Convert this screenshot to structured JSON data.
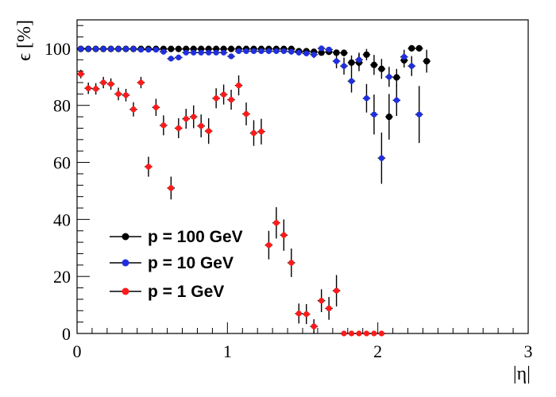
{
  "chart_data": {
    "type": "scatter",
    "title": "",
    "xlabel": "|η|",
    "ylabel": "ϵ [%]",
    "xlim": [
      0,
      3
    ],
    "ylim": [
      0,
      110
    ],
    "x_ticks": [
      0,
      1,
      2,
      3
    ],
    "y_ticks": [
      0,
      20,
      40,
      60,
      80,
      100
    ],
    "grid": false,
    "legend_position": "bottom-left",
    "series": [
      {
        "name": "p = 100 GeV",
        "color": "#000000",
        "points": [
          [
            0.025,
            99.8,
            0.4
          ],
          [
            0.075,
            99.8,
            0.4
          ],
          [
            0.125,
            99.8,
            0.4
          ],
          [
            0.175,
            99.8,
            0.4
          ],
          [
            0.225,
            99.8,
            0.4
          ],
          [
            0.275,
            99.8,
            0.4
          ],
          [
            0.325,
            99.8,
            0.4
          ],
          [
            0.375,
            99.8,
            0.4
          ],
          [
            0.425,
            99.8,
            0.4
          ],
          [
            0.475,
            99.8,
            0.4
          ],
          [
            0.525,
            99.8,
            0.4
          ],
          [
            0.575,
            99.8,
            0.4
          ],
          [
            0.625,
            99.8,
            0.4
          ],
          [
            0.675,
            99.8,
            0.4
          ],
          [
            0.725,
            99.8,
            0.4
          ],
          [
            0.775,
            99.8,
            0.4
          ],
          [
            0.825,
            99.8,
            0.4
          ],
          [
            0.875,
            99.8,
            0.4
          ],
          [
            0.925,
            99.8,
            0.4
          ],
          [
            0.975,
            99.8,
            0.4
          ],
          [
            1.025,
            99.8,
            0.4
          ],
          [
            1.075,
            99.8,
            0.4
          ],
          [
            1.125,
            99.8,
            0.4
          ],
          [
            1.175,
            99.8,
            0.4
          ],
          [
            1.225,
            99.8,
            0.4
          ],
          [
            1.275,
            99.8,
            0.4
          ],
          [
            1.325,
            99.8,
            0.4
          ],
          [
            1.375,
            99.8,
            0.4
          ],
          [
            1.425,
            99.8,
            0.4
          ],
          [
            1.475,
            99.0,
            0.6
          ],
          [
            1.525,
            99.0,
            0.6
          ],
          [
            1.575,
            98.8,
            0.8
          ],
          [
            1.625,
            98.5,
            0.8
          ],
          [
            1.675,
            98.8,
            0.8
          ],
          [
            1.725,
            98.5,
            1.0
          ],
          [
            1.775,
            98.4,
            1.2
          ],
          [
            1.825,
            95.0,
            2.5
          ],
          [
            1.875,
            95.0,
            3.0
          ],
          [
            1.925,
            97.8,
            2.0
          ],
          [
            1.975,
            94.2,
            3.5
          ],
          [
            2.025,
            92.8,
            3.5
          ],
          [
            2.075,
            76.0,
            8.0
          ],
          [
            2.125,
            89.8,
            3.0
          ],
          [
            2.175,
            95.8,
            2.5
          ],
          [
            2.225,
            100.0,
            0.5
          ],
          [
            2.275,
            100.0,
            0.5
          ],
          [
            2.325,
            95.5,
            4.0
          ]
        ]
      },
      {
        "name": "p = 10 GeV",
        "color": "#1f2fe0",
        "points": [
          [
            0.025,
            99.8,
            0.4
          ],
          [
            0.075,
            99.8,
            0.4
          ],
          [
            0.125,
            99.8,
            0.4
          ],
          [
            0.175,
            99.8,
            0.4
          ],
          [
            0.225,
            99.8,
            0.4
          ],
          [
            0.275,
            99.8,
            0.4
          ],
          [
            0.325,
            99.8,
            0.4
          ],
          [
            0.375,
            99.8,
            0.4
          ],
          [
            0.425,
            99.5,
            0.6
          ],
          [
            0.475,
            99.5,
            0.6
          ],
          [
            0.525,
            99.5,
            0.6
          ],
          [
            0.575,
            98.8,
            0.8
          ],
          [
            0.625,
            96.4,
            1.0
          ],
          [
            0.675,
            96.8,
            1.0
          ],
          [
            0.725,
            98.5,
            0.8
          ],
          [
            0.775,
            98.5,
            0.8
          ],
          [
            0.825,
            98.5,
            0.8
          ],
          [
            0.875,
            98.5,
            0.8
          ],
          [
            0.925,
            98.5,
            0.8
          ],
          [
            0.975,
            98.5,
            0.8
          ],
          [
            1.025,
            97.2,
            1.0
          ],
          [
            1.075,
            99.0,
            0.8
          ],
          [
            1.125,
            99.0,
            0.8
          ],
          [
            1.175,
            99.0,
            0.8
          ],
          [
            1.225,
            99.0,
            0.8
          ],
          [
            1.275,
            99.0,
            0.8
          ],
          [
            1.325,
            99.0,
            0.8
          ],
          [
            1.375,
            99.0,
            0.8
          ],
          [
            1.425,
            98.8,
            0.8
          ],
          [
            1.475,
            98.5,
            1.0
          ],
          [
            1.525,
            98.2,
            1.0
          ],
          [
            1.575,
            97.8,
            1.2
          ],
          [
            1.625,
            100.0,
            0.5
          ],
          [
            1.675,
            99.6,
            0.8
          ],
          [
            1.725,
            95.5,
            2.5
          ],
          [
            1.775,
            93.8,
            3.0
          ],
          [
            1.825,
            88.5,
            4.0
          ],
          [
            1.875,
            96.0,
            2.5
          ],
          [
            1.925,
            82.5,
            5.0
          ],
          [
            1.975,
            76.8,
            7.0
          ],
          [
            2.025,
            61.5,
            9.0
          ],
          [
            2.075,
            90.0,
            3.5
          ],
          [
            2.125,
            81.8,
            5.5
          ],
          [
            2.175,
            97.0,
            2.5
          ],
          [
            2.225,
            93.8,
            3.5
          ],
          [
            2.275,
            76.8,
            10.0
          ]
        ]
      },
      {
        "name": "p = 1 GeV",
        "color": "#ff1a1a",
        "points": [
          [
            0.025,
            91.0,
            1.5
          ],
          [
            0.075,
            86.0,
            2.0
          ],
          [
            0.125,
            85.8,
            2.0
          ],
          [
            0.175,
            88.0,
            2.0
          ],
          [
            0.225,
            87.5,
            2.0
          ],
          [
            0.275,
            84.0,
            2.2
          ],
          [
            0.325,
            83.6,
            2.2
          ],
          [
            0.375,
            78.6,
            2.5
          ],
          [
            0.425,
            88.0,
            2.0
          ],
          [
            0.475,
            58.5,
            3.5
          ],
          [
            0.525,
            79.3,
            3.0
          ],
          [
            0.575,
            73.0,
            3.5
          ],
          [
            0.625,
            51.0,
            4.0
          ],
          [
            0.675,
            72.0,
            3.5
          ],
          [
            0.725,
            75.3,
            3.5
          ],
          [
            0.775,
            76.0,
            4.0
          ],
          [
            0.825,
            72.8,
            4.0
          ],
          [
            0.875,
            71.0,
            4.5
          ],
          [
            0.925,
            82.5,
            3.5
          ],
          [
            0.975,
            83.8,
            3.5
          ],
          [
            1.025,
            82.0,
            3.5
          ],
          [
            1.075,
            87.0,
            3.5
          ],
          [
            1.125,
            77.0,
            4.0
          ],
          [
            1.175,
            70.3,
            4.5
          ],
          [
            1.225,
            70.8,
            4.5
          ],
          [
            1.275,
            31.0,
            5.0
          ],
          [
            1.325,
            38.8,
            5.5
          ],
          [
            1.375,
            34.5,
            5.5
          ],
          [
            1.425,
            24.8,
            5.0
          ],
          [
            1.475,
            7.0,
            3.5
          ],
          [
            1.525,
            6.8,
            3.5
          ],
          [
            1.575,
            2.5,
            2.5
          ],
          [
            1.625,
            11.5,
            4.0
          ],
          [
            1.675,
            8.8,
            4.0
          ],
          [
            1.725,
            15.0,
            5.5
          ],
          [
            1.775,
            0.0,
            0.0
          ],
          [
            1.825,
            0.0,
            0.0
          ],
          [
            1.875,
            0.0,
            0.0
          ],
          [
            1.925,
            0.0,
            0.0
          ],
          [
            1.975,
            0.0,
            0.0
          ],
          [
            2.025,
            0.0,
            0.0
          ]
        ]
      }
    ]
  }
}
